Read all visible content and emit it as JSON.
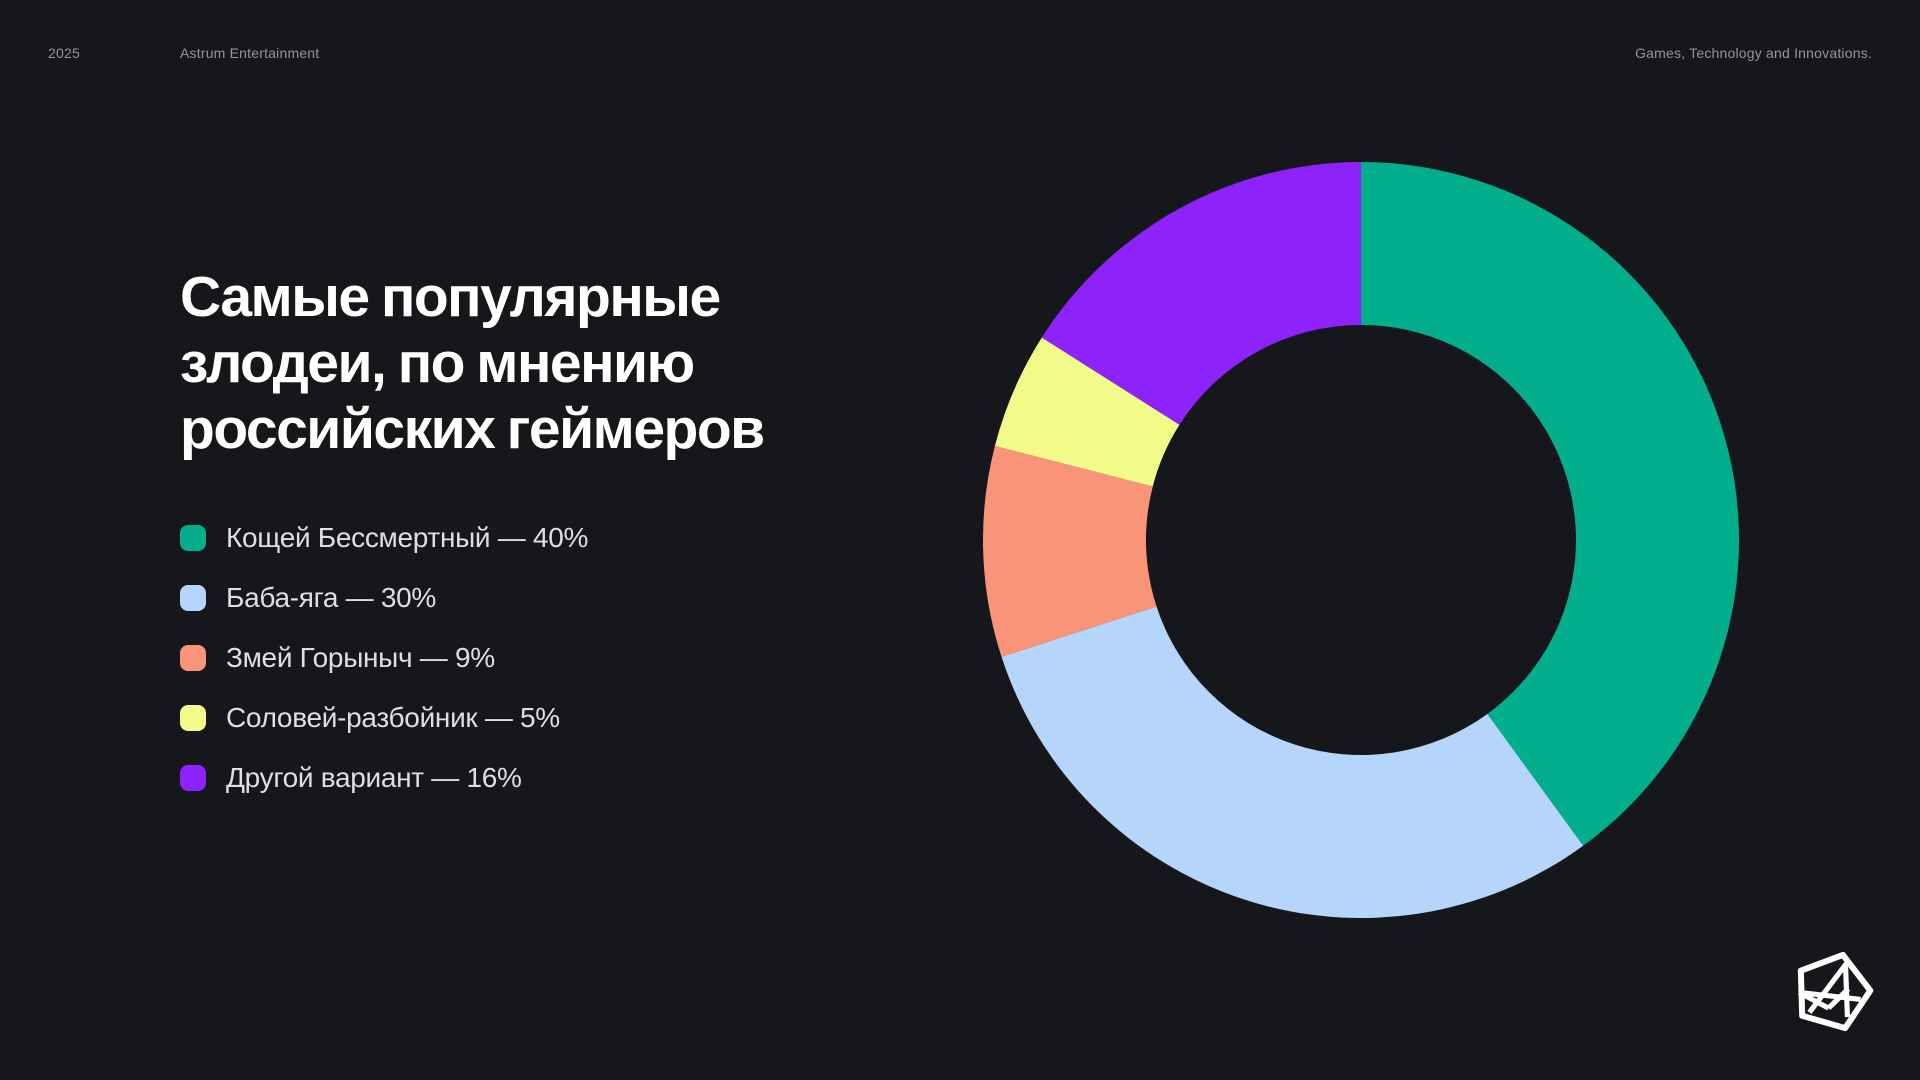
{
  "page": {
    "background": "#16171B"
  },
  "header": {
    "year": "2025",
    "company": "Astrum Entertainment",
    "tagline": "Games, Technology and Innovations."
  },
  "title": {
    "full": "Самые популярные злодеи, по мнению российских геймеров",
    "lines": [
      "Самые популярные",
      "злодеи, по мнению",
      "российских геймеров"
    ]
  },
  "legend": {
    "items": [
      {
        "label": "Кощей Бессмертный — 40%"
      },
      {
        "label": "Баба-яга — 30%"
      },
      {
        "label": "Змей Горыныч — 9%"
      },
      {
        "label": "Соловей-разбойник — 5%"
      },
      {
        "label": "Другой вариант — 16%"
      }
    ]
  },
  "chart_data": {
    "type": "pie",
    "subtype": "donut",
    "title": "Самые популярные злодеи, по мнению российских геймеров",
    "categories": [
      "Кощей Бессмертный",
      "Баба-яга",
      "Змей Горыныч",
      "Соловей-разбойник",
      "Другой вариант"
    ],
    "values": [
      40,
      30,
      9,
      5,
      16
    ],
    "unit": "%",
    "colors": [
      "#02AE8C",
      "#B5D5FA",
      "#FA9478",
      "#F2FA8A",
      "#8D23FA"
    ],
    "start_angle_deg": 0,
    "direction": "clockwise",
    "legend_position": "left",
    "background": "#16171B",
    "donut_hole_ratio": 0.57
  },
  "logo": {
    "name": "astrum-entertainment-logo"
  }
}
